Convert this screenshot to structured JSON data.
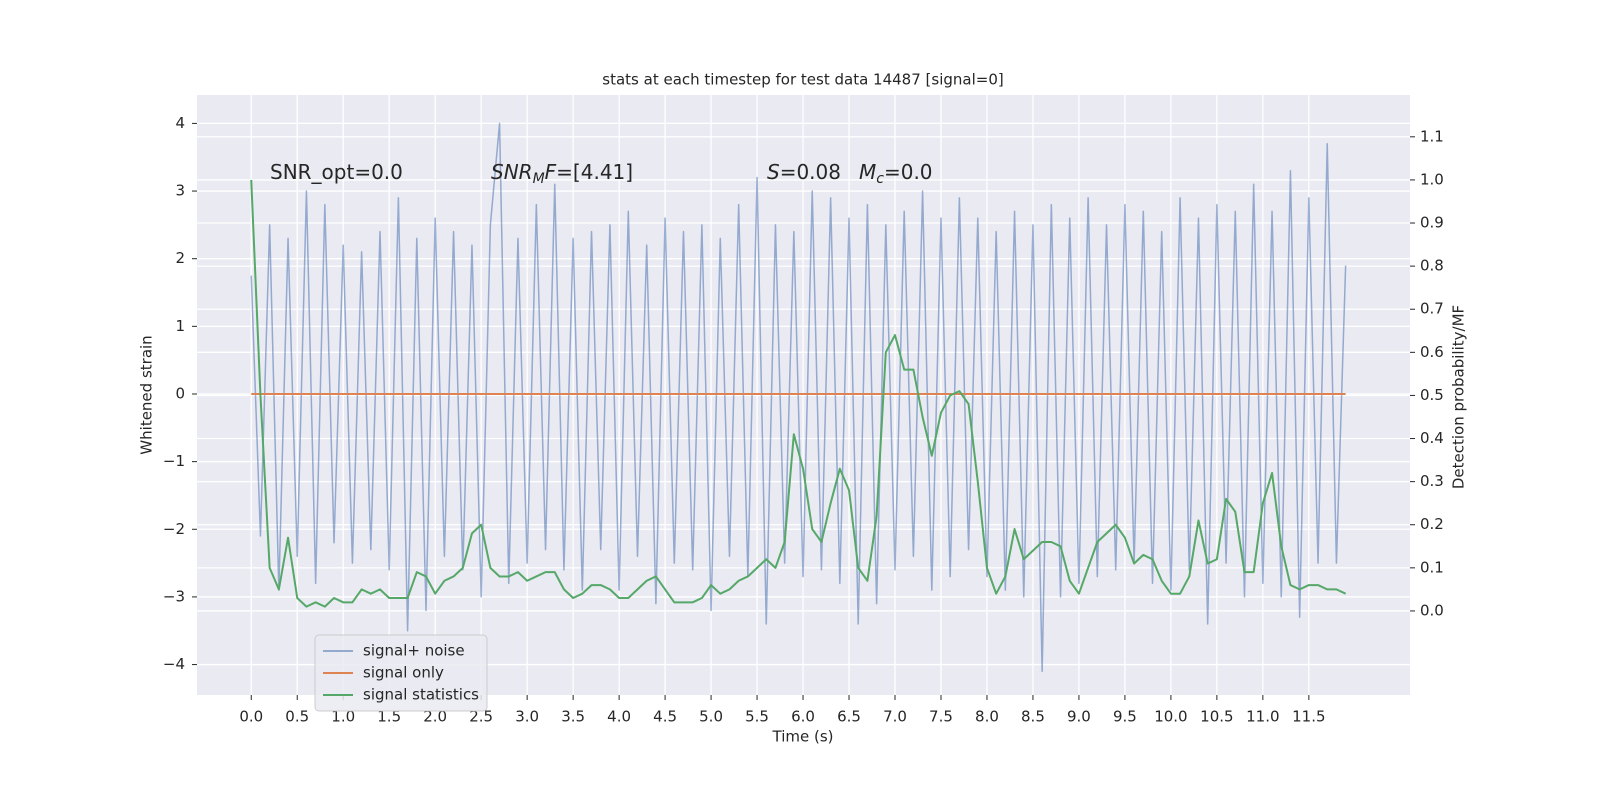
{
  "chart_data": {
    "type": "line",
    "title": "stats at each timestep for test data 14487 [signal=0]",
    "xlabel": "Time (s)",
    "ylabel": "Whitened strain",
    "y2label": "Detection probability/MF",
    "annotations": [
      [
        "SNR_opt=0.0"
      ],
      [
        "SNR",
        "M",
        "F",
        "=[4.41]"
      ],
      [
        "S",
        "=0.08",
        "M",
        "c",
        "=0.0"
      ]
    ],
    "x": [
      0.0,
      0.1,
      0.2,
      0.3,
      0.4,
      0.5,
      0.6,
      0.7,
      0.8,
      0.9,
      1.0,
      1.1,
      1.2,
      1.3,
      1.4,
      1.5,
      1.6,
      1.7,
      1.8,
      1.9,
      2.0,
      2.1,
      2.2,
      2.3,
      2.4,
      2.5,
      2.6,
      2.7,
      2.8,
      2.9,
      3.0,
      3.1,
      3.2,
      3.3,
      3.4,
      3.5,
      3.6,
      3.7,
      3.8,
      3.9,
      4.0,
      4.1,
      4.2,
      4.3,
      4.4,
      4.5,
      4.6,
      4.7,
      4.8,
      4.9,
      5.0,
      5.1,
      5.2,
      5.3,
      5.4,
      5.5,
      5.6,
      5.7,
      5.8,
      5.9,
      6.0,
      6.1,
      6.2,
      6.3,
      6.4,
      6.5,
      6.6,
      6.7,
      6.8,
      6.9,
      7.0,
      7.1,
      7.2,
      7.3,
      7.4,
      7.5,
      7.6,
      7.7,
      7.8,
      7.9,
      8.0,
      8.1,
      8.2,
      8.3,
      8.4,
      8.5,
      8.6,
      8.7,
      8.8,
      8.9,
      9.0,
      9.1,
      9.2,
      9.3,
      9.4,
      9.5,
      9.6,
      9.7,
      9.8,
      9.9,
      10.0,
      10.1,
      10.2,
      10.3,
      10.4,
      10.5,
      10.6,
      10.7,
      10.8,
      10.9,
      11.0,
      11.1,
      11.2,
      11.3,
      11.4,
      11.5,
      11.6,
      11.7,
      11.8,
      11.9
    ],
    "series": [
      {
        "name": "signal+ noise",
        "color": "#4c72b0",
        "values": [
          1.75,
          -2.1,
          2.5,
          -2.9,
          2.3,
          -2.4,
          3.0,
          -2.8,
          2.8,
          -2.2,
          2.2,
          -2.5,
          2.1,
          -2.3,
          2.4,
          -2.6,
          2.9,
          -3.5,
          2.3,
          -3.2,
          2.6,
          -2.4,
          2.4,
          -2.6,
          2.2,
          -3.0,
          2.5,
          4.0,
          -2.8,
          2.3,
          -2.5,
          2.8,
          -2.3,
          3.1,
          -2.6,
          2.3,
          -2.9,
          2.4,
          -2.3,
          2.5,
          -2.9,
          2.7,
          -2.4,
          2.2,
          -3.1,
          2.6,
          -2.5,
          2.4,
          -2.6,
          2.5,
          -3.2,
          2.3,
          -2.4,
          2.8,
          -2.7,
          3.2,
          -3.4,
          2.5,
          -2.5,
          2.4,
          -2.7,
          3.0,
          -2.6,
          2.9,
          -2.8,
          2.6,
          -3.4,
          2.8,
          -3.1,
          2.5,
          -2.6,
          2.7,
          -2.4,
          3.0,
          -2.9,
          2.6,
          -2.7,
          2.9,
          -2.3,
          2.6,
          -2.7,
          2.4,
          -2.9,
          2.7,
          -3.0,
          2.5,
          -4.1,
          2.8,
          -3.0,
          2.6,
          -2.8,
          2.9,
          -2.7,
          2.5,
          -2.6,
          2.8,
          -2.5,
          2.7,
          -2.8,
          2.4,
          -2.9,
          2.9,
          -2.6,
          2.6,
          -3.4,
          2.8,
          -2.5,
          2.7,
          -3.0,
          3.1,
          -2.8,
          2.7,
          -3.0,
          3.3,
          -3.3,
          2.9,
          -2.5,
          3.7,
          -2.5,
          1.9
        ]
      },
      {
        "name": "signal only",
        "color": "#dd8452",
        "x": [
          0.0,
          11.9
        ],
        "values": [
          0,
          0
        ]
      },
      {
        "name": "signal statistics",
        "color": "#55a868",
        "axis": "y2",
        "values": [
          1.0,
          0.5,
          0.1,
          0.05,
          0.17,
          0.03,
          0.01,
          0.02,
          0.01,
          0.03,
          0.02,
          0.02,
          0.05,
          0.04,
          0.05,
          0.03,
          0.03,
          0.03,
          0.09,
          0.08,
          0.04,
          0.07,
          0.08,
          0.1,
          0.18,
          0.2,
          0.1,
          0.08,
          0.08,
          0.09,
          0.07,
          0.08,
          0.09,
          0.09,
          0.05,
          0.03,
          0.04,
          0.06,
          0.06,
          0.05,
          0.03,
          0.03,
          0.05,
          0.07,
          0.08,
          0.05,
          0.02,
          0.02,
          0.02,
          0.03,
          0.06,
          0.04,
          0.05,
          0.07,
          0.08,
          0.1,
          0.12,
          0.1,
          0.16,
          0.41,
          0.33,
          0.19,
          0.16,
          0.25,
          0.33,
          0.28,
          0.1,
          0.07,
          0.22,
          0.6,
          0.64,
          0.56,
          0.56,
          0.45,
          0.36,
          0.46,
          0.5,
          0.51,
          0.48,
          0.3,
          0.1,
          0.04,
          0.08,
          0.19,
          0.12,
          0.14,
          0.16,
          0.16,
          0.15,
          0.07,
          0.04,
          0.1,
          0.16,
          0.18,
          0.2,
          0.17,
          0.11,
          0.13,
          0.12,
          0.07,
          0.04,
          0.04,
          0.08,
          0.21,
          0.11,
          0.12,
          0.26,
          0.23,
          0.09,
          0.09,
          0.25,
          0.32,
          0.15,
          0.06,
          0.05,
          0.06,
          0.06,
          0.05,
          0.05,
          0.04
        ]
      }
    ],
    "xlim": [
      -0.59,
      12.6
    ],
    "xticks": [
      {
        "value": 0,
        "label": "0.0"
      },
      0.5,
      {
        "value": 1,
        "label": "1.0"
      },
      1.5,
      {
        "value": 2,
        "label": "2.0"
      },
      2.5,
      {
        "value": 3,
        "label": "3.0"
      },
      3.5,
      {
        "value": 4,
        "label": "4.0"
      },
      4.5,
      {
        "value": 5,
        "label": "5.0"
      },
      5.5,
      {
        "value": 6,
        "label": "6.0"
      },
      6.5,
      {
        "value": 7,
        "label": "7.0"
      },
      7.5,
      {
        "value": 8,
        "label": "8.0"
      },
      8.5,
      {
        "value": 9,
        "label": "9.0"
      },
      9.5,
      {
        "value": 10,
        "label": "10.0"
      },
      10.5,
      {
        "value": 11,
        "label": "11.0"
      },
      11.5
    ],
    "ylim": [
      -4.45,
      4.42
    ],
    "yticks": [
      {
        "value": -4,
        "label": "−4"
      },
      {
        "value": -3,
        "label": "−3"
      },
      {
        "value": -2,
        "label": "−2"
      },
      {
        "value": -1,
        "label": "−1"
      },
      0,
      1,
      2,
      3,
      4
    ],
    "y2lim": [
      -0.195,
      1.197
    ],
    "y2ticks": [
      {
        "value": 0,
        "label": "0.0"
      },
      0.1,
      0.2,
      0.3,
      0.4,
      0.5,
      0.6,
      0.7,
      0.8,
      0.9,
      {
        "value": 1,
        "label": "1.0"
      },
      1.1
    ],
    "grid": true,
    "legend": "lower left"
  }
}
